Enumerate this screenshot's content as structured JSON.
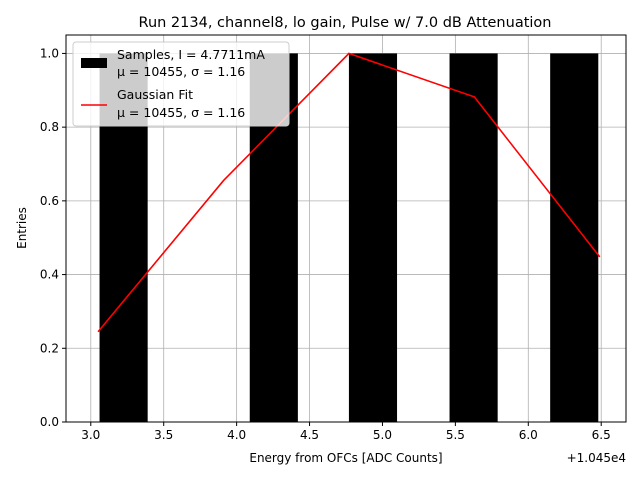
{
  "chart_data": {
    "type": "bar",
    "title": "Run 2134, channel8, lo gain, Pulse w/ 7.0 dB Attenuation",
    "xlabel": "Energy from OFCs [ADC Counts]",
    "ylabel": "Entries",
    "x_offset_label": "+1.045e4",
    "xlim": [
      2.83,
      6.67
    ],
    "ylim": [
      0,
      1.05
    ],
    "xticks": [
      3.0,
      3.5,
      4.0,
      4.5,
      5.0,
      5.5,
      6.0,
      6.5
    ],
    "xtick_labels": [
      "3.0",
      "3.5",
      "4.0",
      "4.5",
      "5.0",
      "5.5",
      "6.0",
      "6.5"
    ],
    "yticks": [
      0.0,
      0.2,
      0.4,
      0.6,
      0.8,
      1.0
    ],
    "ytick_labels": [
      "0.0",
      "0.2",
      "0.4",
      "0.6",
      "0.8",
      "1.0"
    ],
    "grid": true,
    "legend_position": "top-left",
    "histogram": {
      "name": "Samples, I = 4.7711mA",
      "color": "#000000",
      "bins": [
        {
          "x0": 3.06,
          "x1": 3.39,
          "value": 1.0
        },
        {
          "x0": 4.09,
          "x1": 4.42,
          "value": 1.0
        },
        {
          "x0": 4.77,
          "x1": 5.1,
          "value": 1.0
        },
        {
          "x0": 5.46,
          "x1": 5.79,
          "value": 1.0
        },
        {
          "x0": 6.15,
          "x1": 6.48,
          "value": 1.0
        }
      ]
    },
    "fit": {
      "name": "Gaussian Fit",
      "color": "#ff0000",
      "x": [
        3.05,
        3.91,
        4.77,
        5.63,
        6.49
      ],
      "y": [
        0.245,
        0.655,
        1.0,
        0.882,
        0.448
      ]
    },
    "legend": [
      {
        "label": "Samples, I = 4.7711mA",
        "sublabel": "μ = 10455, σ = 1.16"
      },
      {
        "label": "Gaussian Fit",
        "sublabel": "μ = 10455, σ = 1.16"
      }
    ]
  }
}
